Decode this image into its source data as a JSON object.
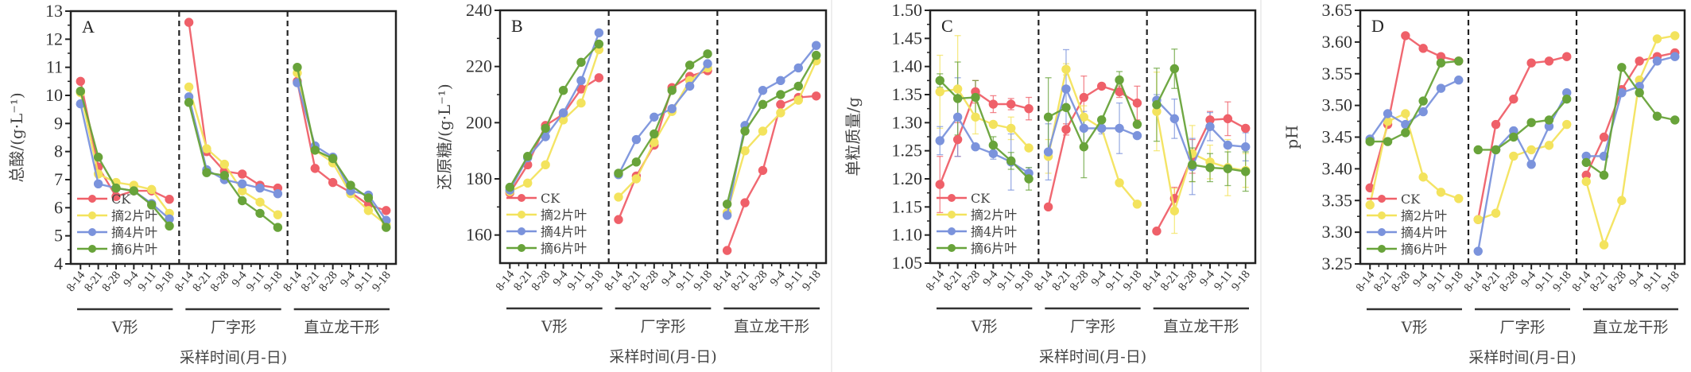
{
  "figure": {
    "xlabel": "采样时间(月-日)",
    "series_colors": {
      "CK": "#ef6069",
      "摘2片叶": "#f3e35d",
      "摘4片叶": "#7b93dc",
      "摘6片叶": "#68a33a"
    }
  },
  "chart_data": [
    {
      "type": "line",
      "panel": "A",
      "title": "",
      "ylabel": "总酸/(g·L⁻¹)",
      "xlabel": "采样时间(月-日)",
      "ylim": [
        4,
        13
      ],
      "yticks": [
        4,
        5,
        6,
        7,
        8,
        9,
        10,
        11,
        12,
        13
      ],
      "ytick_labels": [
        "4",
        "5",
        "6",
        "7",
        "8",
        "9",
        "10",
        "11",
        "12",
        "13"
      ],
      "groups": [
        "V形",
        "厂字形",
        "直立龙干形"
      ],
      "categories": [
        "8-14",
        "8-21",
        "8-28",
        "9-4",
        "9-11",
        "9-18"
      ],
      "legend": [
        "CK",
        "摘2片叶",
        "摘4片叶",
        "摘6片叶"
      ],
      "legend_position": "lower-left",
      "grid": false,
      "series": [
        {
          "name": "CK",
          "values": [
            [
              10.5,
              7.45,
              6.4,
              6.6,
              6.6,
              6.3
            ],
            [
              12.6,
              8.0,
              7.3,
              7.2,
              6.8,
              6.7
            ],
            [
              10.5,
              7.4,
              6.9,
              6.55,
              6.1,
              5.9
            ]
          ]
        },
        {
          "name": "摘2片叶",
          "values": [
            [
              10.1,
              7.2,
              6.9,
              6.8,
              6.65,
              5.8
            ],
            [
              10.3,
              8.1,
              7.55,
              6.6,
              6.2,
              5.75
            ],
            [
              10.8,
              8.05,
              7.6,
              6.5,
              5.9,
              5.4
            ]
          ]
        },
        {
          "name": "摘4片叶",
          "values": [
            [
              9.7,
              6.85,
              6.7,
              6.6,
              6.15,
              5.6
            ],
            [
              9.95,
              7.35,
              7.0,
              6.85,
              6.7,
              6.5
            ],
            [
              10.45,
              8.2,
              7.8,
              6.6,
              6.45,
              5.55
            ]
          ]
        },
        {
          "name": "摘6片叶",
          "values": [
            [
              10.15,
              7.8,
              6.7,
              6.6,
              6.1,
              5.35
            ],
            [
              9.75,
              7.25,
              7.15,
              6.25,
              5.8,
              5.3
            ],
            [
              11.0,
              8.05,
              7.75,
              6.8,
              6.35,
              5.3
            ]
          ]
        }
      ]
    },
    {
      "type": "line",
      "panel": "B",
      "title": "",
      "ylabel": "还原糖/(g·L⁻¹)",
      "xlabel": "采样时间(月-日)",
      "ylim": [
        150,
        240
      ],
      "yticks": [
        160,
        180,
        200,
        220,
        240
      ],
      "ytick_labels": [
        "160",
        "180",
        "200",
        "220",
        "240"
      ],
      "groups": [
        "V形",
        "厂字形",
        "直立龙干形"
      ],
      "categories": [
        "8-14",
        "8-21",
        "8-28",
        "9-4",
        "9-11",
        "9-18"
      ],
      "legend": [
        "CK",
        "摘2片叶",
        "摘4片叶",
        "摘6片叶"
      ],
      "legend_position": "lower-left",
      "grid": false,
      "series": [
        {
          "name": "CK",
          "values": [
            [
              175,
              185,
              199,
              203,
              212,
              216
            ],
            [
              165.5,
              181,
              192,
              212.5,
              216.5,
              218.5
            ],
            [
              154.5,
              171.5,
              183,
              206.5,
              209,
              209.5
            ]
          ]
        },
        {
          "name": "摘2片叶",
          "values": [
            [
              175.5,
              178.5,
              185,
              201,
              207,
              226
            ],
            [
              173.5,
              180,
              193,
              204,
              215,
              219.5
            ],
            [
              168,
              190,
              197,
              203.5,
              208,
              222
            ]
          ]
        },
        {
          "name": "摘4片叶",
          "values": [
            [
              176,
              187.5,
              195,
              203.5,
              215,
              232
            ],
            [
              181.5,
              194,
              202,
              205,
              213,
              221
            ],
            [
              167,
              199,
              211.5,
              215,
              219.5,
              227.5
            ]
          ]
        },
        {
          "name": "摘6片叶",
          "values": [
            [
              177,
              188,
              198,
              211.5,
              221.5,
              228
            ],
            [
              182,
              186,
              196,
              211.5,
              220.5,
              224.5
            ],
            [
              171,
              197,
              206.5,
              210,
              213,
              224
            ]
          ]
        }
      ]
    },
    {
      "type": "line",
      "panel": "C",
      "title": "",
      "ylabel": "单粒质量/g",
      "xlabel": "采样时间(月-日)",
      "ylim": [
        1.05,
        1.5
      ],
      "yticks": [
        1.05,
        1.1,
        1.15,
        1.2,
        1.25,
        1.3,
        1.35,
        1.4,
        1.45,
        1.5
      ],
      "ytick_labels": [
        "1.05",
        "1.10",
        "1.15",
        "1.20",
        "1.25",
        "1.30",
        "1.35",
        "1.40",
        "1.45",
        "1.50"
      ],
      "groups": [
        "V形",
        "厂字形",
        "直立龙干形"
      ],
      "categories": [
        "8-14",
        "8-21",
        "8-28",
        "9-4",
        "9-11",
        "9-18"
      ],
      "legend": [
        "CK",
        "摘2片叶",
        "摘4片叶",
        "摘6片叶"
      ],
      "legend_position": "lower-left",
      "grid": false,
      "series": [
        {
          "name": "CK",
          "values": [
            [
              1.19,
              1.27,
              1.355,
              1.333,
              1.333,
              1.325
            ],
            [
              1.15,
              1.288,
              1.345,
              1.365,
              1.355,
              1.335
            ],
            [
              1.107,
              1.165,
              1.24,
              1.305,
              1.307,
              1.29
            ]
          ]
        },
        {
          "name": "摘2片叶",
          "values": [
            [
              1.355,
              1.36,
              1.31,
              1.297,
              1.29,
              1.255
            ],
            [
              1.24,
              1.395,
              1.31,
              1.29,
              1.193,
              1.155
            ],
            [
              1.32,
              1.143,
              1.245,
              1.23,
              1.22,
              1.215
            ]
          ]
        },
        {
          "name": "摘4片叶",
          "values": [
            [
              1.268,
              1.31,
              1.257,
              1.245,
              1.23,
              1.21
            ],
            [
              1.248,
              1.36,
              1.29,
              1.29,
              1.29,
              1.277
            ],
            [
              1.34,
              1.307,
              1.222,
              1.293,
              1.26,
              1.257
            ]
          ]
        },
        {
          "name": "摘6片叶",
          "values": [
            [
              1.375,
              1.343,
              1.345,
              1.26,
              1.232,
              1.2
            ],
            [
              1.31,
              1.327,
              1.257,
              1.305,
              1.376,
              1.297
            ],
            [
              1.332,
              1.396,
              1.225,
              1.22,
              1.218,
              1.213
            ]
          ]
        }
      ],
      "error_bars": [
        {
          "name": "CK",
          "values": [
            [
              0.05,
              0.03,
              0.02,
              0.015,
              0.01,
              0.02
            ],
            [
              0.005,
              0.01,
              0.038,
              0.005,
              0.01,
              0.03
            ],
            [
              0.005,
              0.02,
              0.03,
              0.015,
              0.03,
              0.005
            ]
          ]
        },
        {
          "name": "摘2片叶",
          "values": [
            [
              0.065,
              0.095,
              0.03,
              0.005,
              0.02,
              0.005
            ],
            [
              0.03,
              0.01,
              0.02,
              0.005,
              0.005,
              0.005
            ],
            [
              0.07,
              0.04,
              0.05,
              0.03,
              0.05,
              0.03
            ]
          ]
        },
        {
          "name": "摘4片叶",
          "values": [
            [
              0.025,
              0.07,
              0.005,
              0.01,
              0.05,
              0.01
            ],
            [
              0.05,
              0.07,
              0.03,
              0.01,
              0.045,
              0.005
            ],
            [
              0.01,
              0.035,
              0.05,
              0.025,
              0.005,
              0.025
            ]
          ]
        },
        {
          "name": "摘6片叶",
          "values": [
            [
              0.012,
              0.065,
              0.03,
              0.015,
              0.015,
              0.02
            ],
            [
              0.07,
              0.005,
              0.055,
              0.005,
              0.015,
              0.005
            ],
            [
              0.065,
              0.035,
              0.03,
              0.025,
              0.03,
              0.035
            ]
          ]
        }
      ]
    },
    {
      "type": "line",
      "panel": "D",
      "title": "",
      "ylabel": "pH",
      "xlabel": "采样时间(月-日)",
      "ylim": [
        3.25,
        3.65
      ],
      "yticks": [
        3.25,
        3.3,
        3.35,
        3.4,
        3.45,
        3.5,
        3.55,
        3.6,
        3.65
      ],
      "ytick_labels": [
        "3.25",
        "3.30",
        "3.35",
        "3.40",
        "3.45",
        "3.50",
        "3.55",
        "3.60",
        "3.65"
      ],
      "groups": [
        "V形",
        "厂字形",
        "直立龙干形"
      ],
      "categories": [
        "8-14",
        "8-21",
        "8-28",
        "9-4",
        "9-11",
        "9-18"
      ],
      "legend": [
        "CK",
        "摘2片叶",
        "摘4片叶",
        "摘6片叶"
      ],
      "legend_position": "lower-left",
      "grid": false,
      "series": [
        {
          "name": "CK",
          "values": [
            [
              3.37,
              3.47,
              3.61,
              3.59,
              3.577,
              3.57
            ],
            [
              3.32,
              3.47,
              3.51,
              3.567,
              3.57,
              3.577
            ],
            [
              3.39,
              3.45,
              3.525,
              3.57,
              3.577,
              3.583
            ]
          ]
        },
        {
          "name": "摘2片叶",
          "values": [
            [
              3.343,
              3.475,
              3.487,
              3.387,
              3.363,
              3.353
            ],
            [
              3.32,
              3.33,
              3.42,
              3.43,
              3.437,
              3.47
            ],
            [
              3.38,
              3.28,
              3.35,
              3.54,
              3.605,
              3.61
            ]
          ]
        },
        {
          "name": "摘4片叶",
          "values": [
            [
              3.447,
              3.487,
              3.47,
              3.49,
              3.527,
              3.54
            ],
            [
              3.27,
              3.43,
              3.46,
              3.407,
              3.467,
              3.52
            ],
            [
              3.42,
              3.42,
              3.52,
              3.53,
              3.57,
              3.577
            ]
          ]
        },
        {
          "name": "摘6片叶",
          "values": [
            [
              3.443,
              3.443,
              3.457,
              3.507,
              3.567,
              3.57
            ],
            [
              3.43,
              3.43,
              3.45,
              3.473,
              3.477,
              3.51
            ],
            [
              3.41,
              3.39,
              3.56,
              3.52,
              3.483,
              3.477
            ]
          ]
        }
      ]
    }
  ]
}
